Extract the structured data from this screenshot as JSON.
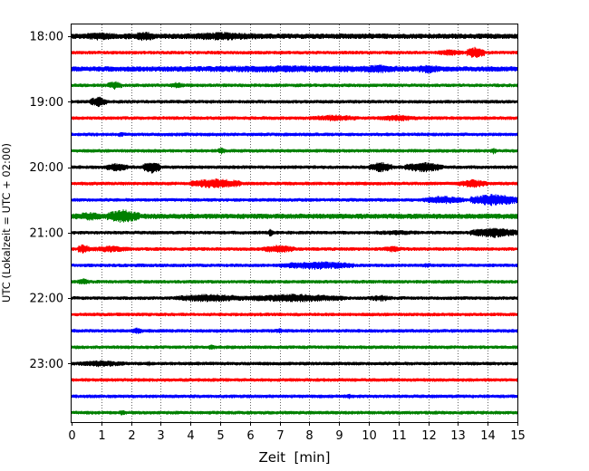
{
  "chart_data": {
    "type": "line",
    "subtype": "helicorder",
    "title": "",
    "xlabel": "Zeit  [min]",
    "ylabel": "UTC (Lokalzeit = UTC + 02:00)",
    "xlim": [
      0,
      15
    ],
    "x_ticks": [
      "0",
      "1",
      "2",
      "3",
      "4",
      "5",
      "6",
      "7",
      "8",
      "9",
      "10",
      "11",
      "12",
      "13",
      "14",
      "15"
    ],
    "y_ticks": [
      "18:00",
      "19:00",
      "20:00",
      "21:00",
      "22:00",
      "23:00"
    ],
    "grid": "vertical dotted",
    "colors": [
      "#000000",
      "#ff0000",
      "#0000ff",
      "#008000"
    ],
    "series": [
      {
        "start": "18:00",
        "color": "black",
        "level": 3,
        "bursts": [
          [
            0.3,
            1.6,
            5
          ],
          [
            1.7,
            2.1,
            4
          ],
          [
            2.1,
            2.8,
            6
          ],
          [
            3.5,
            6.7,
            5
          ],
          [
            9.6,
            9.8,
            4
          ]
        ]
      },
      {
        "start": "18:15",
        "color": "red",
        "level": 2,
        "bursts": [
          [
            12.3,
            13.2,
            4
          ],
          [
            13.3,
            13.9,
            7
          ]
        ]
      },
      {
        "start": "18:30",
        "color": "blue",
        "level": 3,
        "bursts": [
          [
            0.0,
            15.0,
            4
          ],
          [
            9.5,
            11.2,
            5
          ],
          [
            11.5,
            12.5,
            5
          ]
        ]
      },
      {
        "start": "18:45",
        "color": "green",
        "level": 2,
        "bursts": [
          [
            1.2,
            1.7,
            5
          ],
          [
            3.3,
            3.8,
            4
          ]
        ]
      },
      {
        "start": "19:00",
        "color": "black",
        "level": 2,
        "bursts": [
          [
            0.6,
            1.2,
            6
          ]
        ]
      },
      {
        "start": "19:15",
        "color": "red",
        "level": 2,
        "bursts": [
          [
            8.0,
            9.7,
            4
          ],
          [
            10.3,
            11.7,
            4
          ]
        ]
      },
      {
        "start": "19:30",
        "color": "blue",
        "level": 2,
        "bursts": [
          [
            1.5,
            1.8,
            3
          ]
        ]
      },
      {
        "start": "19:45",
        "color": "green",
        "level": 2,
        "bursts": [
          [
            4.9,
            5.2,
            4
          ],
          [
            14.1,
            14.3,
            4
          ]
        ]
      },
      {
        "start": "20:00",
        "color": "black",
        "level": 2,
        "bursts": [
          [
            1.1,
            1.9,
            5
          ],
          [
            2.4,
            3.0,
            7
          ],
          [
            10.0,
            10.8,
            6
          ],
          [
            11.2,
            12.5,
            6
          ]
        ]
      },
      {
        "start": "20:15",
        "color": "red",
        "level": 2,
        "bursts": [
          [
            4.0,
            5.7,
            6
          ],
          [
            13.0,
            14.0,
            5
          ]
        ]
      },
      {
        "start": "20:30",
        "color": "blue",
        "level": 2,
        "bursts": [
          [
            11.8,
            13.2,
            5
          ],
          [
            13.4,
            15.0,
            7
          ]
        ]
      },
      {
        "start": "20:45",
        "color": "green",
        "level": 3,
        "bursts": [
          [
            0.0,
            1.2,
            5
          ],
          [
            1.2,
            2.3,
            8
          ]
        ]
      },
      {
        "start": "21:00",
        "color": "black",
        "level": 2,
        "bursts": [
          [
            6.6,
            6.8,
            5
          ],
          [
            9.9,
            12.0,
            3
          ],
          [
            13.4,
            15.0,
            6
          ]
        ]
      },
      {
        "start": "21:15",
        "color": "red",
        "level": 2,
        "bursts": [
          [
            0.2,
            0.6,
            6
          ],
          [
            0.6,
            2.0,
            4
          ],
          [
            6.4,
            7.5,
            5
          ],
          [
            10.5,
            11.1,
            4
          ]
        ]
      },
      {
        "start": "21:30",
        "color": "blue",
        "level": 2,
        "bursts": [
          [
            7.0,
            9.5,
            5
          ],
          [
            11.7,
            12.2,
            3
          ]
        ]
      },
      {
        "start": "21:45",
        "color": "green",
        "level": 2,
        "bursts": [
          [
            0.2,
            0.6,
            4
          ]
        ]
      },
      {
        "start": "22:00",
        "color": "black",
        "level": 2,
        "bursts": [
          [
            3.5,
            5.8,
            5
          ],
          [
            5.8,
            9.2,
            5
          ],
          [
            10.0,
            10.8,
            4
          ]
        ]
      },
      {
        "start": "22:15",
        "color": "red",
        "level": 2,
        "bursts": []
      },
      {
        "start": "22:30",
        "color": "blue",
        "level": 2,
        "bursts": [
          [
            2.0,
            2.4,
            4
          ],
          [
            6.8,
            7.2,
            3
          ]
        ]
      },
      {
        "start": "22:45",
        "color": "green",
        "level": 2,
        "bursts": [
          [
            4.5,
            4.9,
            3
          ]
        ]
      },
      {
        "start": "23:00",
        "color": "black",
        "level": 2,
        "bursts": [
          [
            0.2,
            1.8,
            4
          ],
          [
            2.5,
            2.7,
            3
          ]
        ]
      },
      {
        "start": "23:15",
        "color": "red",
        "level": 2,
        "bursts": []
      },
      {
        "start": "23:30",
        "color": "blue",
        "level": 2,
        "bursts": [
          [
            9.2,
            9.5,
            3
          ]
        ]
      },
      {
        "start": "23:45",
        "color": "green",
        "level": 2,
        "bursts": [
          [
            1.5,
            1.9,
            3
          ]
        ]
      }
    ]
  }
}
